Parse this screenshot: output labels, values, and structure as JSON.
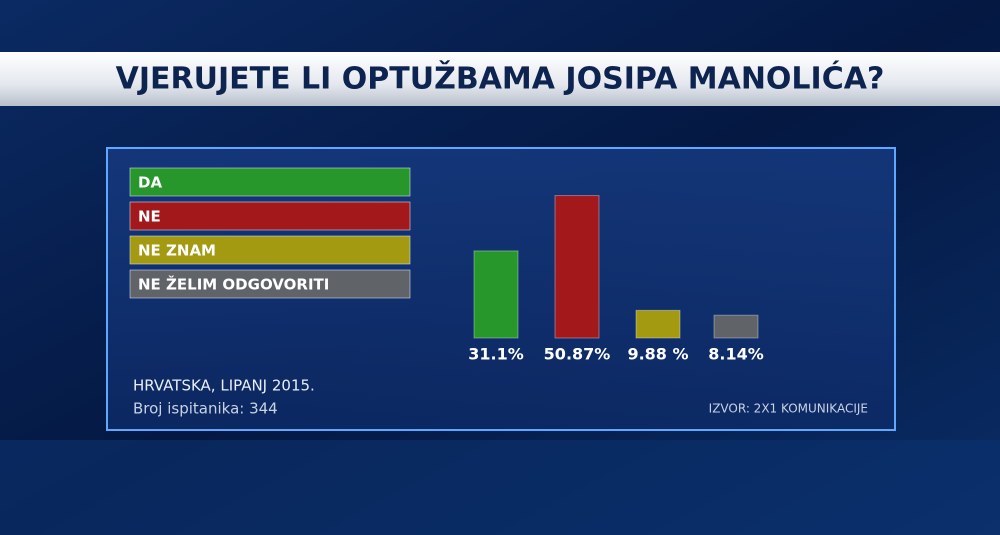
{
  "chart_data": {
    "type": "bar",
    "title": "VJERUJETE LI OPTUŽBAMA JOSIPA MANOLIĆA?",
    "categories": [
      "DA",
      "NE",
      "NE ZNAM",
      "NE ŽELIM ODGOVORITI"
    ],
    "values": [
      31.1,
      50.87,
      9.88,
      8.14
    ],
    "value_labels": [
      "31.1%",
      "50.87%",
      "9.88 %",
      "8.14%"
    ],
    "colors": [
      "#27962b",
      "#a3181b",
      "#a39a12",
      "#606468"
    ],
    "annotations": [
      "HRVATSKA, LIPANJ 2015.",
      "Broj ispitanika: 344"
    ],
    "source": "IZVOR: 2X1 KOMUNIKACIJE"
  }
}
